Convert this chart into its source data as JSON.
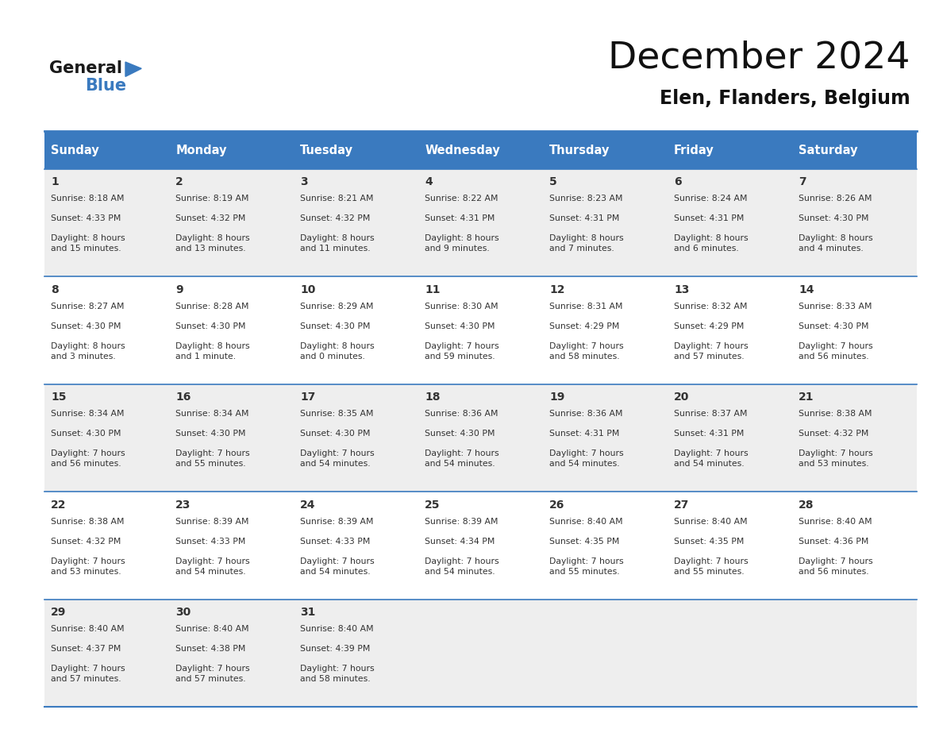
{
  "title": "December 2024",
  "subtitle": "Elen, Flanders, Belgium",
  "header_color": "#3a7abf",
  "header_text_color": "#ffffff",
  "cell_bg_color_odd": "#eeeeee",
  "cell_bg_color_even": "#ffffff",
  "border_color": "#3a7abf",
  "text_color": "#333333",
  "day_headers": [
    "Sunday",
    "Monday",
    "Tuesday",
    "Wednesday",
    "Thursday",
    "Friday",
    "Saturday"
  ],
  "weeks": [
    [
      {
        "day": 1,
        "sunrise": "8:18 AM",
        "sunset": "4:33 PM",
        "daylight": "8 hours\nand 15 minutes."
      },
      {
        "day": 2,
        "sunrise": "8:19 AM",
        "sunset": "4:32 PM",
        "daylight": "8 hours\nand 13 minutes."
      },
      {
        "day": 3,
        "sunrise": "8:21 AM",
        "sunset": "4:32 PM",
        "daylight": "8 hours\nand 11 minutes."
      },
      {
        "day": 4,
        "sunrise": "8:22 AM",
        "sunset": "4:31 PM",
        "daylight": "8 hours\nand 9 minutes."
      },
      {
        "day": 5,
        "sunrise": "8:23 AM",
        "sunset": "4:31 PM",
        "daylight": "8 hours\nand 7 minutes."
      },
      {
        "day": 6,
        "sunrise": "8:24 AM",
        "sunset": "4:31 PM",
        "daylight": "8 hours\nand 6 minutes."
      },
      {
        "day": 7,
        "sunrise": "8:26 AM",
        "sunset": "4:30 PM",
        "daylight": "8 hours\nand 4 minutes."
      }
    ],
    [
      {
        "day": 8,
        "sunrise": "8:27 AM",
        "sunset": "4:30 PM",
        "daylight": "8 hours\nand 3 minutes."
      },
      {
        "day": 9,
        "sunrise": "8:28 AM",
        "sunset": "4:30 PM",
        "daylight": "8 hours\nand 1 minute."
      },
      {
        "day": 10,
        "sunrise": "8:29 AM",
        "sunset": "4:30 PM",
        "daylight": "8 hours\nand 0 minutes."
      },
      {
        "day": 11,
        "sunrise": "8:30 AM",
        "sunset": "4:30 PM",
        "daylight": "7 hours\nand 59 minutes."
      },
      {
        "day": 12,
        "sunrise": "8:31 AM",
        "sunset": "4:29 PM",
        "daylight": "7 hours\nand 58 minutes."
      },
      {
        "day": 13,
        "sunrise": "8:32 AM",
        "sunset": "4:29 PM",
        "daylight": "7 hours\nand 57 minutes."
      },
      {
        "day": 14,
        "sunrise": "8:33 AM",
        "sunset": "4:30 PM",
        "daylight": "7 hours\nand 56 minutes."
      }
    ],
    [
      {
        "day": 15,
        "sunrise": "8:34 AM",
        "sunset": "4:30 PM",
        "daylight": "7 hours\nand 56 minutes."
      },
      {
        "day": 16,
        "sunrise": "8:34 AM",
        "sunset": "4:30 PM",
        "daylight": "7 hours\nand 55 minutes."
      },
      {
        "day": 17,
        "sunrise": "8:35 AM",
        "sunset": "4:30 PM",
        "daylight": "7 hours\nand 54 minutes."
      },
      {
        "day": 18,
        "sunrise": "8:36 AM",
        "sunset": "4:30 PM",
        "daylight": "7 hours\nand 54 minutes."
      },
      {
        "day": 19,
        "sunrise": "8:36 AM",
        "sunset": "4:31 PM",
        "daylight": "7 hours\nand 54 minutes."
      },
      {
        "day": 20,
        "sunrise": "8:37 AM",
        "sunset": "4:31 PM",
        "daylight": "7 hours\nand 54 minutes."
      },
      {
        "day": 21,
        "sunrise": "8:38 AM",
        "sunset": "4:32 PM",
        "daylight": "7 hours\nand 53 minutes."
      }
    ],
    [
      {
        "day": 22,
        "sunrise": "8:38 AM",
        "sunset": "4:32 PM",
        "daylight": "7 hours\nand 53 minutes."
      },
      {
        "day": 23,
        "sunrise": "8:39 AM",
        "sunset": "4:33 PM",
        "daylight": "7 hours\nand 54 minutes."
      },
      {
        "day": 24,
        "sunrise": "8:39 AM",
        "sunset": "4:33 PM",
        "daylight": "7 hours\nand 54 minutes."
      },
      {
        "day": 25,
        "sunrise": "8:39 AM",
        "sunset": "4:34 PM",
        "daylight": "7 hours\nand 54 minutes."
      },
      {
        "day": 26,
        "sunrise": "8:40 AM",
        "sunset": "4:35 PM",
        "daylight": "7 hours\nand 55 minutes."
      },
      {
        "day": 27,
        "sunrise": "8:40 AM",
        "sunset": "4:35 PM",
        "daylight": "7 hours\nand 55 minutes."
      },
      {
        "day": 28,
        "sunrise": "8:40 AM",
        "sunset": "4:36 PM",
        "daylight": "7 hours\nand 56 minutes."
      }
    ],
    [
      {
        "day": 29,
        "sunrise": "8:40 AM",
        "sunset": "4:37 PM",
        "daylight": "7 hours\nand 57 minutes."
      },
      {
        "day": 30,
        "sunrise": "8:40 AM",
        "sunset": "4:38 PM",
        "daylight": "7 hours\nand 57 minutes."
      },
      {
        "day": 31,
        "sunrise": "8:40 AM",
        "sunset": "4:39 PM",
        "daylight": "7 hours\nand 58 minutes."
      },
      null,
      null,
      null,
      null
    ]
  ]
}
